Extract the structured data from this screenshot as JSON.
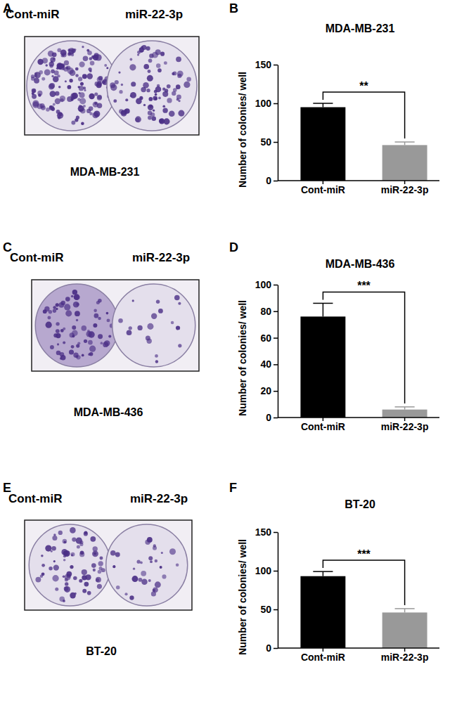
{
  "figure_panels": [
    {
      "letter": "A",
      "plate_labels": [
        "Cont-miR",
        "miR-22-3p"
      ],
      "caption": "MDA-MB-231"
    },
    {
      "letter": "C",
      "plate_labels": [
        "Cont-miR",
        "miR-22-3p"
      ],
      "caption": "MDA-MB-436"
    },
    {
      "letter": "E",
      "plate_labels": [
        "Cont-miR",
        "miR-22-3p"
      ],
      "caption": "BT-20"
    }
  ],
  "chart_data": [
    {
      "type": "bar",
      "panel": "B",
      "title": "MDA-MB-231",
      "y_label": "Number of colonies/ well",
      "categories": [
        "Cont-miR",
        "miR-22-3p"
      ],
      "values": [
        95,
        46
      ],
      "errors": [
        5,
        4
      ],
      "colors": [
        "#000000",
        "#999999"
      ],
      "ylim": [
        0,
        150
      ],
      "yticks": [
        0,
        50,
        100,
        150
      ],
      "annotation": "**"
    },
    {
      "type": "bar",
      "panel": "D",
      "title": "MDA-MB-436",
      "y_label": "Number of colonies/ well",
      "categories": [
        "Cont-miR",
        "miR-22-3p"
      ],
      "values": [
        76,
        6
      ],
      "errors": [
        10,
        2
      ],
      "colors": [
        "#000000",
        "#999999"
      ],
      "ylim": [
        0,
        100
      ],
      "yticks": [
        0,
        20,
        40,
        60,
        80,
        100
      ],
      "annotation": "***"
    },
    {
      "type": "bar",
      "panel": "F",
      "title": "BT-20",
      "y_label": "Number of colonies/ well",
      "categories": [
        "Cont-miR",
        "miR-22-3p"
      ],
      "values": [
        93,
        46
      ],
      "errors": [
        6,
        5
      ],
      "colors": [
        "#000000",
        "#999999"
      ],
      "ylim": [
        0,
        150
      ],
      "yticks": [
        0,
        50,
        100,
        150
      ],
      "annotation": "***"
    }
  ]
}
